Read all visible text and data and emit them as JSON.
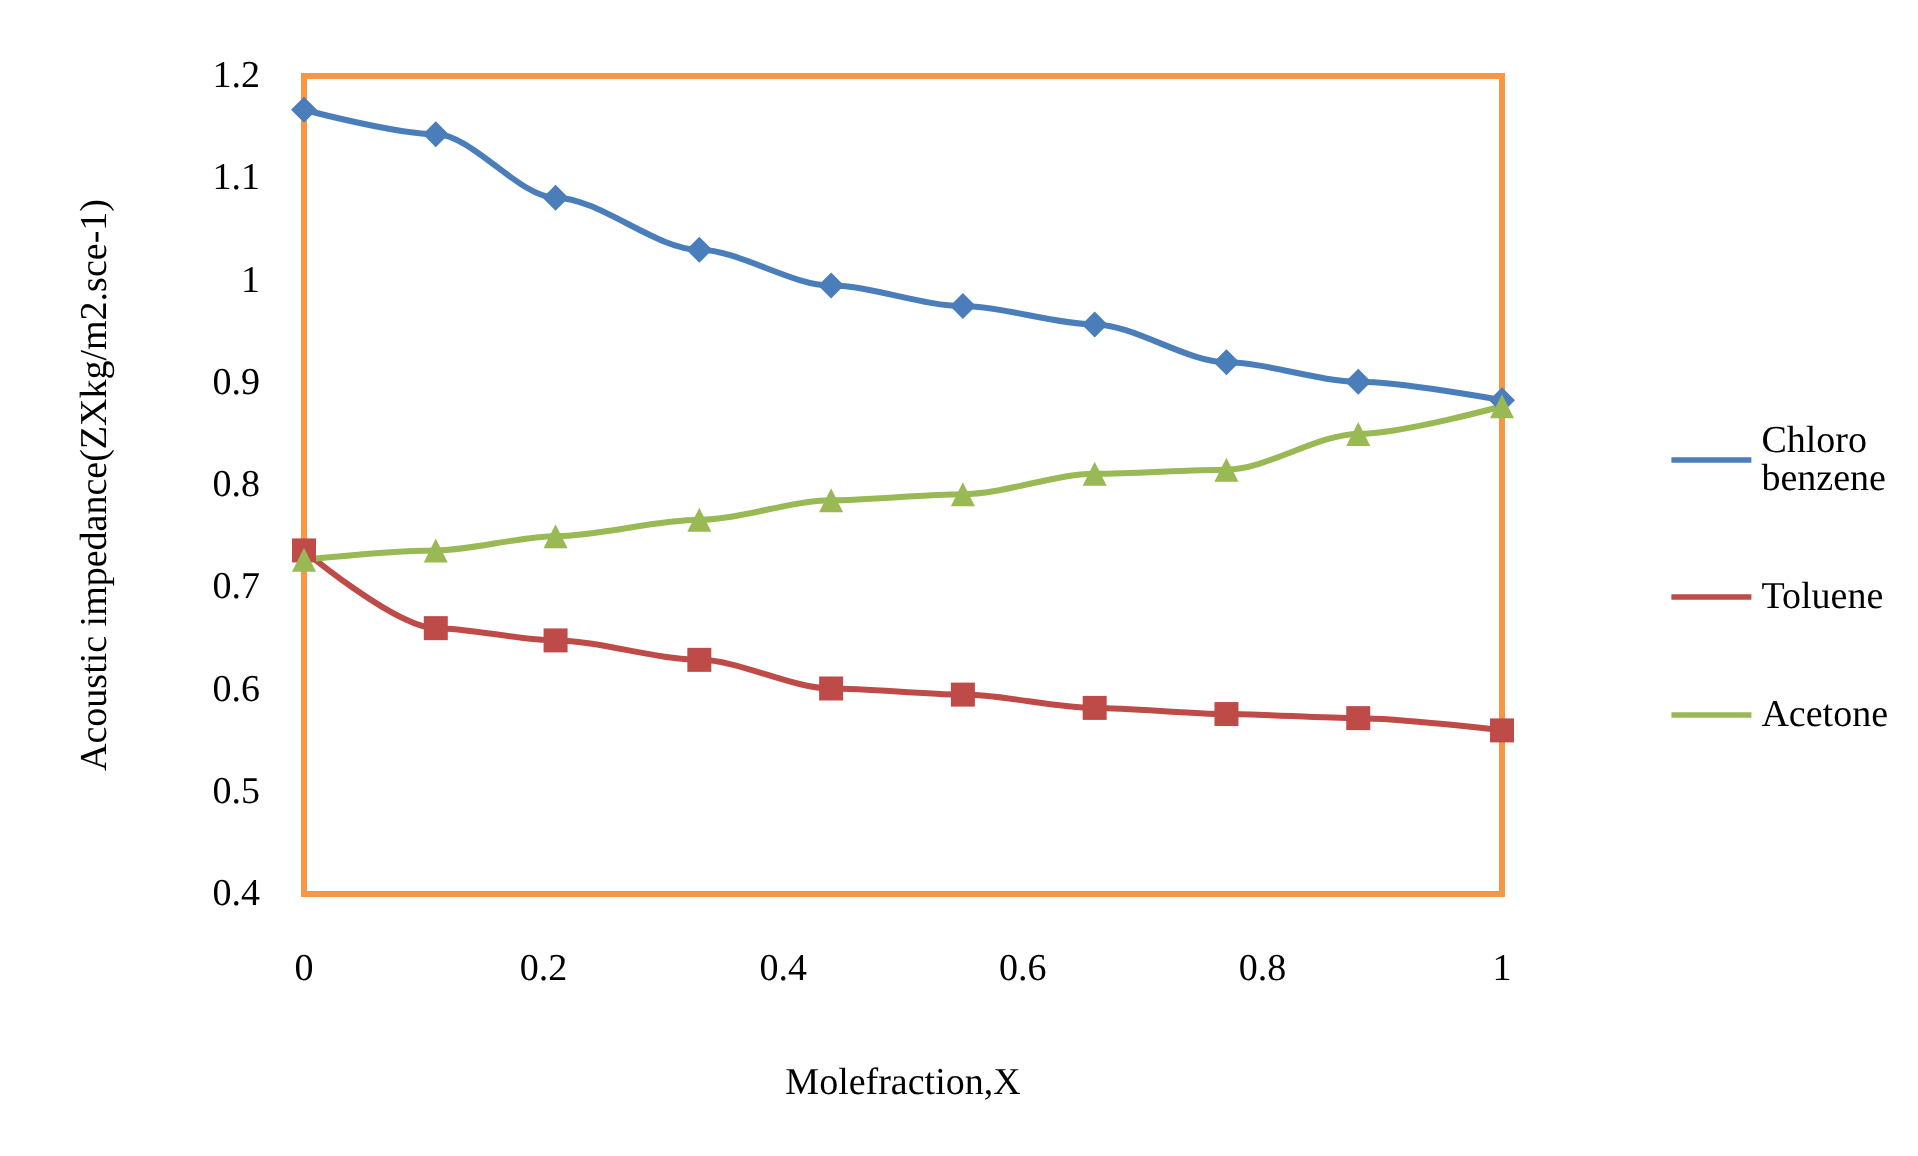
{
  "chart_data": {
    "type": "line",
    "xlabel": "Molefraction,X",
    "ylabel": "Acoustic impedance(ZXkg/m2.sce-1)",
    "x": [
      0,
      0.11,
      0.21,
      0.33,
      0.44,
      0.55,
      0.66,
      0.77,
      0.88,
      1.0
    ],
    "series": [
      {
        "name": "Chloro benzene",
        "color": "#4a7ebb",
        "marker": "diamond",
        "values": [
          1.167,
          1.143,
          1.081,
          1.03,
          0.995,
          0.975,
          0.957,
          0.92,
          0.901,
          0.883
        ]
      },
      {
        "name": "Toluene",
        "color": "#be4b48",
        "marker": "square",
        "values": [
          0.736,
          0.66,
          0.648,
          0.629,
          0.601,
          0.595,
          0.582,
          0.576,
          0.572,
          0.56
        ]
      },
      {
        "name": "Acetone",
        "color": "#98b954",
        "marker": "triangle",
        "values": [
          0.727,
          0.736,
          0.75,
          0.766,
          0.785,
          0.791,
          0.811,
          0.815,
          0.85,
          0.877
        ]
      }
    ],
    "xlim": [
      0,
      1
    ],
    "xticks": [
      0,
      0.2,
      0.4,
      0.6,
      0.8,
      1
    ],
    "ylim": [
      0.4,
      1.2
    ],
    "yticks": [
      0.4,
      0.5,
      0.6,
      0.7,
      0.8,
      0.9,
      1,
      1.1,
      1.2
    ],
    "grid": false,
    "legend": "right",
    "line_style": "solid"
  }
}
